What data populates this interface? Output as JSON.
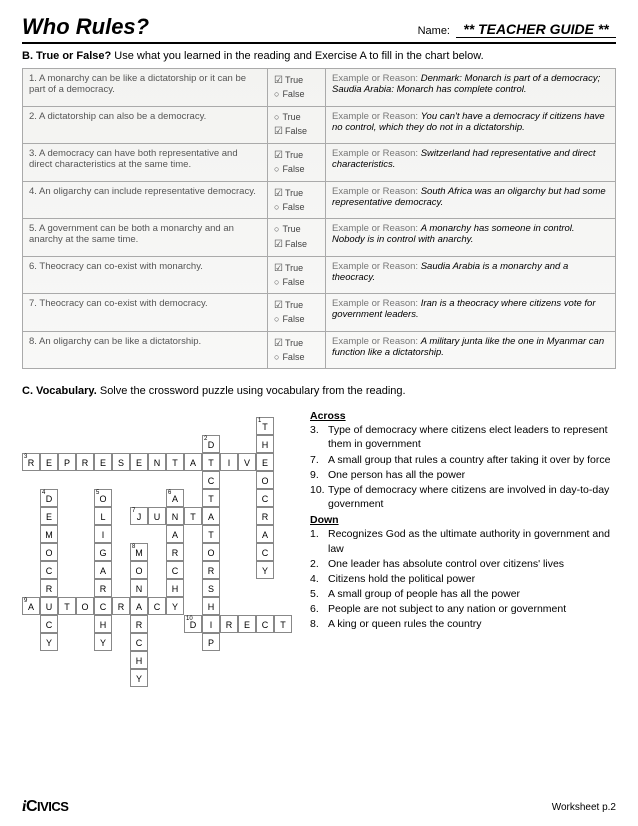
{
  "header": {
    "title": "Who Rules?",
    "name_label": "Name:",
    "name_value": "** TEACHER GUIDE **"
  },
  "sectionB": {
    "head_bold": "B. True or False?",
    "head_rest": " Use what you learned in the reading and Exercise A to fill in the chart below.",
    "true_label": "True",
    "false_label": "False",
    "exp_lead": "Example or Reason:",
    "rows": [
      {
        "q": "1. A monarchy can be like a dictatorship or it can be part of a democracy.",
        "ans": "T",
        "exp": "Denmark: Monarch is part of a democracy; Saudia Arabia: Monarch has complete control."
      },
      {
        "q": "2. A dictatorship can also be a democracy.",
        "ans": "F",
        "exp": "You can't have a democracy if citizens have no control, which they do not in a dictatorship."
      },
      {
        "q": "3. A democracy can have both representative and direct characteristics at the same time.",
        "ans": "T",
        "exp": "Switzerland had representative and direct characteristics."
      },
      {
        "q": "4. An oligarchy can include representative democracy.",
        "ans": "T",
        "exp": "South Africa was an oligarchy but had some representative democracy."
      },
      {
        "q": "5. A government can be both a monarchy and an anarchy at the same time.",
        "ans": "F",
        "exp": "A monarchy has someone in control. Nobody is in control with anarchy."
      },
      {
        "q": "6. Theocracy can co-exist with monarchy.",
        "ans": "T",
        "exp": "Saudia Arabia is a monarchy and a theocracy."
      },
      {
        "q": "7. Theocracy can co-exist with democracy.",
        "ans": "T",
        "exp": "Iran is a theocracy where citizens vote for government leaders."
      },
      {
        "q": "8. An oligarchy can be like a dictatorship.",
        "ans": "T",
        "exp": "A military junta like the one in Myanmar can function like a dictatorship."
      }
    ]
  },
  "sectionC": {
    "head_bold": "C. Vocabulary.",
    "head_rest": " Solve the crossword puzzle using vocabulary from the reading.",
    "across_label": "Across",
    "down_label": "Down",
    "across": [
      {
        "n": "3.",
        "t": "Type of democracy where citizens elect leaders to represent them in government"
      },
      {
        "n": "7.",
        "t": "A small group that rules a country after taking it over by force"
      },
      {
        "n": "9.",
        "t": "One person has all the power"
      },
      {
        "n": "10.",
        "t": "Type of democracy where citizens are involved in day-to-day government"
      }
    ],
    "down": [
      {
        "n": "1.",
        "t": "Recognizes God as the ultimate authority in government and law"
      },
      {
        "n": "2.",
        "t": "One leader has absolute control over citizens' lives"
      },
      {
        "n": "4.",
        "t": "Citizens hold the political power"
      },
      {
        "n": "5.",
        "t": "A small group of people has all the power"
      },
      {
        "n": "6.",
        "t": "People are not subject to any nation or government"
      },
      {
        "n": "8.",
        "t": "A king or queen rules the country"
      }
    ]
  },
  "crossword": {
    "cells": [
      {
        "r": 1,
        "c": 14,
        "l": "T",
        "n": "1"
      },
      {
        "r": 2,
        "c": 11,
        "l": "D",
        "n": "2"
      },
      {
        "r": 2,
        "c": 14,
        "l": "H"
      },
      {
        "r": 3,
        "c": 1,
        "l": "R",
        "n": "3"
      },
      {
        "r": 3,
        "c": 2,
        "l": "E"
      },
      {
        "r": 3,
        "c": 3,
        "l": "P"
      },
      {
        "r": 3,
        "c": 4,
        "l": "R"
      },
      {
        "r": 3,
        "c": 5,
        "l": "E"
      },
      {
        "r": 3,
        "c": 6,
        "l": "S"
      },
      {
        "r": 3,
        "c": 7,
        "l": "E"
      },
      {
        "r": 3,
        "c": 8,
        "l": "N"
      },
      {
        "r": 3,
        "c": 9,
        "l": "T"
      },
      {
        "r": 3,
        "c": 10,
        "l": "A"
      },
      {
        "r": 3,
        "c": 11,
        "l": "T"
      },
      {
        "r": 3,
        "c": 12,
        "l": "I"
      },
      {
        "r": 3,
        "c": 13,
        "l": "V"
      },
      {
        "r": 3,
        "c": 14,
        "l": "E"
      },
      {
        "r": 4,
        "c": 11,
        "l": "C"
      },
      {
        "r": 4,
        "c": 14,
        "l": "O"
      },
      {
        "r": 5,
        "c": 2,
        "l": "D",
        "n": "4"
      },
      {
        "r": 5,
        "c": 5,
        "l": "O",
        "n": "5"
      },
      {
        "r": 5,
        "c": 9,
        "l": "A",
        "n": "6"
      },
      {
        "r": 5,
        "c": 11,
        "l": "T"
      },
      {
        "r": 5,
        "c": 14,
        "l": "C"
      },
      {
        "r": 6,
        "c": 2,
        "l": "E"
      },
      {
        "r": 6,
        "c": 5,
        "l": "L"
      },
      {
        "r": 6,
        "c": 7,
        "l": "J",
        "n": "7"
      },
      {
        "r": 6,
        "c": 8,
        "l": "U"
      },
      {
        "r": 6,
        "c": 9,
        "l": "N"
      },
      {
        "r": 6,
        "c": 10,
        "l": "T"
      },
      {
        "r": 6,
        "c": 11,
        "l": "A"
      },
      {
        "r": 6,
        "c": 14,
        "l": "R"
      },
      {
        "r": 7,
        "c": 2,
        "l": "M"
      },
      {
        "r": 7,
        "c": 5,
        "l": "I"
      },
      {
        "r": 7,
        "c": 9,
        "l": "A"
      },
      {
        "r": 7,
        "c": 11,
        "l": "T"
      },
      {
        "r": 7,
        "c": 14,
        "l": "A"
      },
      {
        "r": 8,
        "c": 2,
        "l": "O"
      },
      {
        "r": 8,
        "c": 5,
        "l": "G"
      },
      {
        "r": 8,
        "c": 7,
        "l": "M",
        "n": "8"
      },
      {
        "r": 8,
        "c": 9,
        "l": "R"
      },
      {
        "r": 8,
        "c": 11,
        "l": "O"
      },
      {
        "r": 8,
        "c": 14,
        "l": "C"
      },
      {
        "r": 9,
        "c": 2,
        "l": "C"
      },
      {
        "r": 9,
        "c": 5,
        "l": "A"
      },
      {
        "r": 9,
        "c": 7,
        "l": "O"
      },
      {
        "r": 9,
        "c": 9,
        "l": "C"
      },
      {
        "r": 9,
        "c": 11,
        "l": "R"
      },
      {
        "r": 9,
        "c": 14,
        "l": "Y"
      },
      {
        "r": 10,
        "c": 2,
        "l": "R"
      },
      {
        "r": 10,
        "c": 5,
        "l": "R"
      },
      {
        "r": 10,
        "c": 7,
        "l": "N"
      },
      {
        "r": 10,
        "c": 9,
        "l": "H"
      },
      {
        "r": 10,
        "c": 11,
        "l": "S"
      },
      {
        "r": 11,
        "c": 1,
        "l": "A",
        "n": "9"
      },
      {
        "r": 11,
        "c": 2,
        "l": "U"
      },
      {
        "r": 11,
        "c": 3,
        "l": "T"
      },
      {
        "r": 11,
        "c": 4,
        "l": "O"
      },
      {
        "r": 11,
        "c": 5,
        "l": "C"
      },
      {
        "r": 11,
        "c": 6,
        "l": "R"
      },
      {
        "r": 11,
        "c": 7,
        "l": "A"
      },
      {
        "r": 11,
        "c": 8,
        "l": "C"
      },
      {
        "r": 11,
        "c": 9,
        "l": "Y"
      },
      {
        "r": 11,
        "c": 11,
        "l": "H"
      },
      {
        "r": 12,
        "c": 2,
        "l": "C"
      },
      {
        "r": 12,
        "c": 5,
        "l": "H"
      },
      {
        "r": 12,
        "c": 7,
        "l": "R"
      },
      {
        "r": 12,
        "c": 10,
        "l": "D",
        "n": "10"
      },
      {
        "r": 12,
        "c": 11,
        "l": "I"
      },
      {
        "r": 12,
        "c": 12,
        "l": "R"
      },
      {
        "r": 12,
        "c": 13,
        "l": "E"
      },
      {
        "r": 12,
        "c": 14,
        "l": "C"
      },
      {
        "r": 12,
        "c": 15,
        "l": "T"
      },
      {
        "r": 13,
        "c": 2,
        "l": "Y"
      },
      {
        "r": 13,
        "c": 5,
        "l": "Y"
      },
      {
        "r": 13,
        "c": 7,
        "l": "C"
      },
      {
        "r": 13,
        "c": 11,
        "l": "P"
      },
      {
        "r": 14,
        "c": 7,
        "l": "H"
      },
      {
        "r": 15,
        "c": 7,
        "l": "Y"
      }
    ]
  },
  "footer": {
    "logo": "iCIVICS",
    "page": "Worksheet p.2"
  }
}
